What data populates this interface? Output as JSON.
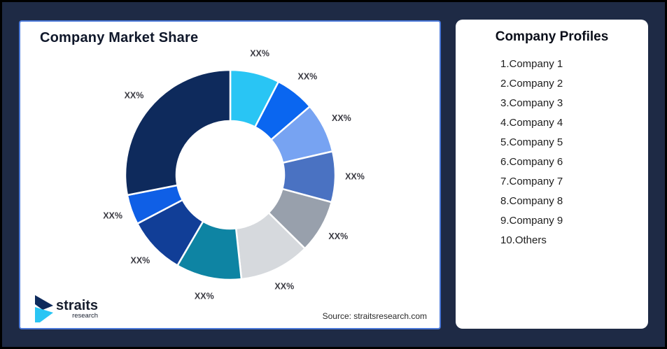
{
  "chart_data": {
    "type": "pie",
    "subtype": "donut",
    "title": "Company Market Share",
    "direction": "clockwise",
    "start_angle_deg": 0,
    "legend_position": "none",
    "inner_radius_ratio": 0.51,
    "slices": [
      {
        "name": "Company 1",
        "display_label": "XX%",
        "value_pct_est": 7.6,
        "color": "#29C5F4"
      },
      {
        "name": "Company 2",
        "display_label": "XX%",
        "value_pct_est": 6.1,
        "color": "#0A66F0"
      },
      {
        "name": "Company 3",
        "display_label": "XX%",
        "value_pct_est": 7.7,
        "color": "#77A3F2"
      },
      {
        "name": "Company 4",
        "display_label": "XX%",
        "value_pct_est": 7.8,
        "color": "#4A72C2"
      },
      {
        "name": "Company 5",
        "display_label": "XX%",
        "value_pct_est": 8.2,
        "color": "#98A0AC"
      },
      {
        "name": "Company 6",
        "display_label": "XX%",
        "value_pct_est": 10.9,
        "color": "#D6D9DD"
      },
      {
        "name": "Company 7",
        "display_label": "XX%",
        "value_pct_est": 10.1,
        "color": "#0E84A3"
      },
      {
        "name": "Company 8",
        "display_label": "XX%",
        "value_pct_est": 8.9,
        "color": "#113E97"
      },
      {
        "name": "Company 9",
        "display_label": "XX%",
        "value_pct_est": 4.6,
        "color": "#0F5FE6"
      },
      {
        "name": "Others",
        "display_label": "XX%",
        "value_pct_est": 28.1,
        "color": "#0E2A5C"
      }
    ]
  },
  "profiles": {
    "title": "Company Profiles",
    "items": [
      "1.Company 1",
      "2.Company 2",
      "3.Company 3",
      "4.Company 4",
      "5.Company 5",
      "6.Company 6",
      "7.Company 7",
      "8.Company 8",
      "9.Company 9",
      "10.Others"
    ]
  },
  "footer": {
    "source": "Source: straitsresearch.com",
    "logo_brand": "straits",
    "logo_sub": "research"
  },
  "colors": {
    "background": "#1E2A45",
    "chart_card_border": "#4A78D8",
    "slice_gap_stroke": "#FFFFFF",
    "label_text": "#3A3A42",
    "logo_navy": "#0E2A5C",
    "logo_cyan": "#29C5F4"
  }
}
